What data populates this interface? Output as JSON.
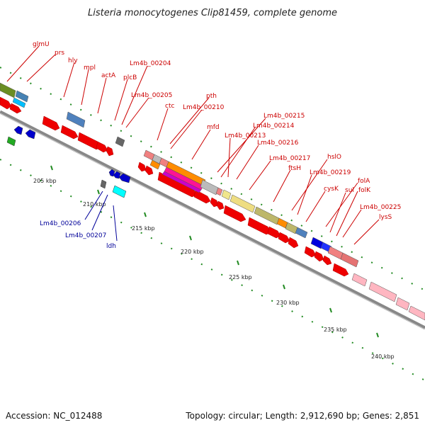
{
  "title": "Listeria monocytogenes Clip81459, complete genome",
  "footer": {
    "accession": "Accession: NC_012488",
    "topology": "Topology: circular; Length: 2,912,690 bp; Genes: 2,851"
  },
  "colors": {
    "forward_gene": "#ee0000",
    "reverse_gene": "#0000cc",
    "label_forward": "#cc0000",
    "label_reverse": "#000099",
    "tick": "#228b22",
    "backbone": "#888888"
  },
  "kbp_labels": [
    "205 kbp",
    "210 kbp",
    "215 kbp",
    "220 kbp",
    "225 kbp",
    "230 kbp",
    "235 kbp",
    "240 kbp"
  ],
  "gene_labels_forward": [
    "glmU",
    "prs",
    "hly",
    "mpl",
    "actA",
    "plcB",
    "Lm4b_00204",
    "Lm4b_00205",
    "ctc",
    "pth",
    "Lm4b_00210",
    "mfd",
    "Lm4b_00213",
    "Lm4b_00215",
    "Lm4b_00214",
    "Lm4b_00216",
    "Lm4b_00217",
    "hslO",
    "ftsH",
    "Lm4b_00219",
    "cysK",
    "folA",
    "sul",
    "folK",
    "Lm4b_00225",
    "lysS"
  ],
  "gene_labels_reverse": [
    "Lm4b_00206",
    "Lm4b_00207",
    "ldh"
  ]
}
